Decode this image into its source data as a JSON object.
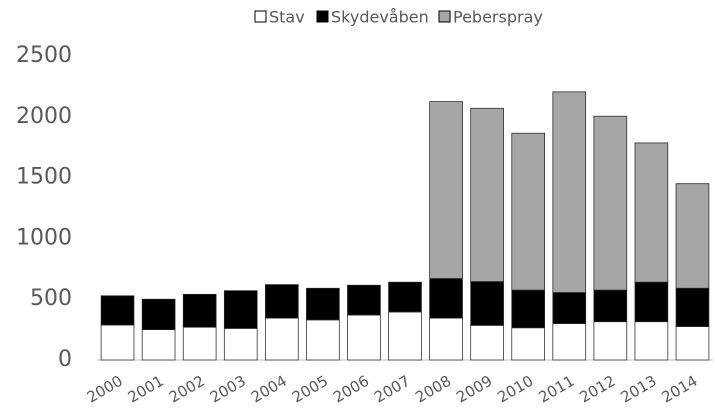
{
  "chart_data": {
    "type": "stacked_bar",
    "categories": [
      "2000",
      "2001",
      "2002",
      "2003",
      "2004",
      "2005",
      "2006",
      "2007",
      "2008",
      "2009",
      "2010",
      "2011",
      "2012",
      "2013",
      "2014"
    ],
    "series": [
      {
        "name": "Stav",
        "color": "#ffffff",
        "values": [
          288,
          250,
          270,
          260,
          345,
          330,
          370,
          395,
          345,
          285,
          265,
          300,
          315,
          315,
          275
        ]
      },
      {
        "name": "Skydevåben",
        "color": "#000000",
        "values": [
          240,
          250,
          270,
          310,
          275,
          260,
          245,
          245,
          325,
          360,
          310,
          255,
          260,
          325,
          315
        ]
      },
      {
        "name": "Peberspray",
        "color": "#a6a6a6",
        "values": [
          null,
          null,
          null,
          null,
          null,
          null,
          null,
          null,
          1455,
          1425,
          1290,
          1650,
          1430,
          1145,
          860
        ]
      }
    ],
    "ylim": [
      0,
      2500
    ],
    "yticks": [
      0,
      500,
      1000,
      1500,
      2000,
      2500
    ],
    "legend": "top"
  }
}
